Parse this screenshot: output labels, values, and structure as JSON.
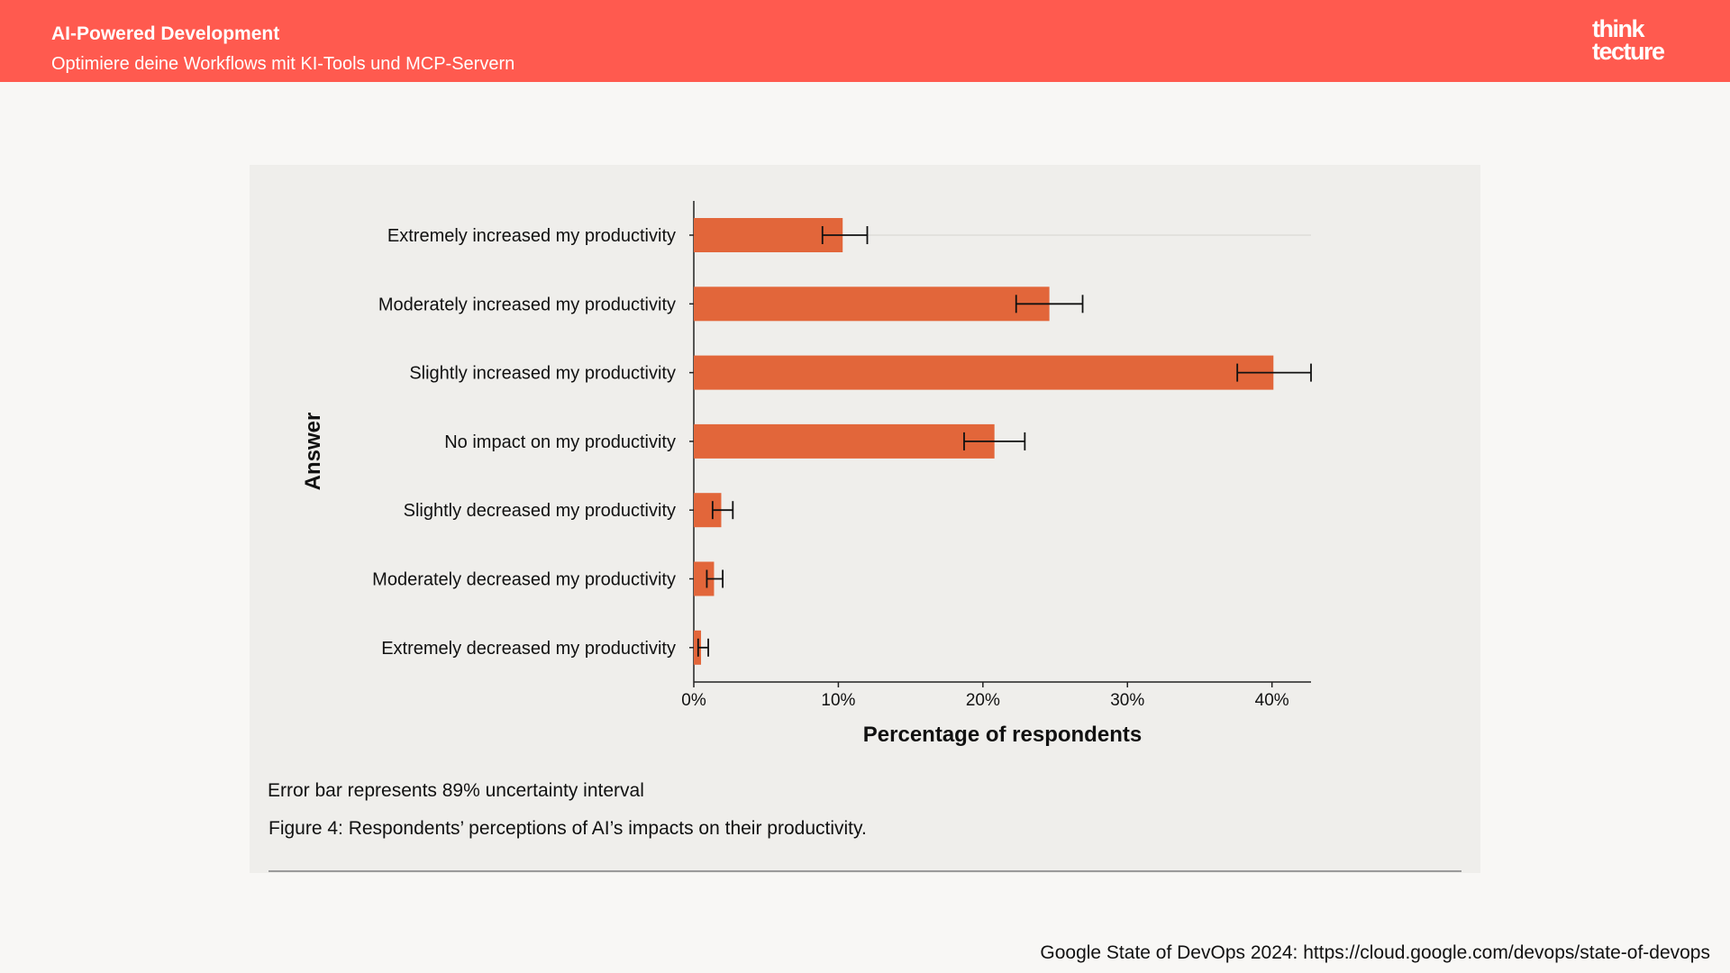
{
  "header": {
    "title": "AI-Powered Development",
    "subtitle": "Optimiere deine Workflows mit KI-Tools und MCP-Servern",
    "logo_line1": "think",
    "logo_line2": "tecture"
  },
  "colors": {
    "header_bg": "#ff5a4f",
    "bar": "#e2663a",
    "card_bg": "#efeeeb"
  },
  "chart_data": {
    "type": "bar",
    "orientation": "horizontal",
    "categories": [
      "Extremely increased my productivity",
      "Moderately increased my productivity",
      "Slightly increased my productivity",
      "No impact on my productivity",
      "Slightly decreased my productivity",
      "Moderately decreased my productivity",
      "Extremely decreased my productivity"
    ],
    "values": [
      10.3,
      24.6,
      40.1,
      20.8,
      1.9,
      1.4,
      0.5
    ],
    "error_low": [
      8.9,
      22.3,
      37.6,
      18.7,
      1.3,
      0.9,
      0.3
    ],
    "error_high": [
      12.0,
      26.9,
      42.7,
      22.9,
      2.7,
      2.0,
      1.0
    ],
    "xlabel": "Percentage of respondents",
    "ylabel": "Answer",
    "xlim": [
      0,
      42.7
    ],
    "xticks": [
      0,
      10,
      20,
      30,
      40
    ],
    "xtick_labels": [
      "0%",
      "10%",
      "20%",
      "30%",
      "40%"
    ],
    "grid": false
  },
  "captions": {
    "error_note": "Error bar represents 89% uncertainty interval",
    "figure": "Figure 4: Respondents’ perceptions of AI’s impacts on their productivity."
  },
  "source": "Google State of DevOps 2024: https://cloud.google.com/devops/state-of-devops"
}
